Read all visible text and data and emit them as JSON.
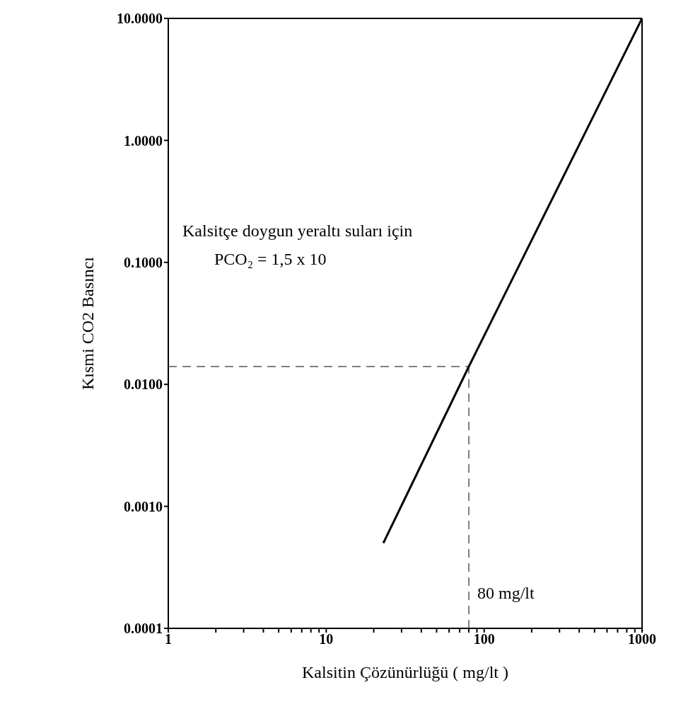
{
  "chart_data": {
    "type": "line",
    "xlabel": "Kalsitin Çözünürlüğü ( mg/lt )",
    "ylabel": "Kısmi CO2 Basıncı",
    "x": [
      23,
      80,
      1000
    ],
    "series": [
      {
        "color": "#000000",
        "values": [
          0.0005,
          0.014,
          10
        ]
      }
    ],
    "log": "xy",
    "grid": false,
    "legend": false,
    "marker": "none",
    "line_style": "solid",
    "xlim": [
      1,
      1000
    ],
    "xticks": [
      1,
      {
        "value": 2,
        "label": null
      },
      {
        "value": 3,
        "label": null
      },
      {
        "value": 4,
        "label": null
      },
      {
        "value": 5,
        "label": null
      },
      {
        "value": 6,
        "label": null
      },
      {
        "value": 7,
        "label": null
      },
      {
        "value": 8,
        "label": null
      },
      {
        "value": 9,
        "label": null
      },
      10,
      {
        "value": 20,
        "label": null
      },
      {
        "value": 30,
        "label": null
      },
      {
        "value": 40,
        "label": null
      },
      {
        "value": 50,
        "label": null
      },
      {
        "value": 60,
        "label": null
      },
      {
        "value": 70,
        "label": null
      },
      {
        "value": 80,
        "label": null
      },
      {
        "value": 90,
        "label": null
      },
      100,
      {
        "value": 200,
        "label": null
      },
      {
        "value": 300,
        "label": null
      },
      {
        "value": 400,
        "label": null
      },
      {
        "value": 500,
        "label": null
      },
      {
        "value": 600,
        "label": null
      },
      {
        "value": 700,
        "label": null
      },
      {
        "value": 800,
        "label": null
      },
      {
        "value": 900,
        "label": null
      },
      1000
    ],
    "ylim": [
      0.0001,
      10
    ],
    "yticks": [
      {
        "value": 0.0001,
        "label": "0.0001"
      },
      {
        "value": 0.001,
        "label": "0.0010"
      },
      {
        "value": 0.01,
        "label": "0.0100"
      },
      {
        "value": 0.1,
        "label": "0.1000"
      },
      {
        "value": 1,
        "label": "1.0000"
      },
      {
        "value": 10,
        "label": "10.0000"
      }
    ],
    "ref_lines": [
      {
        "axis": "y",
        "value": 0.014,
        "line_style": "dashed",
        "color": "#000000"
      },
      {
        "axis": "x",
        "value": 80,
        "label": "80 mg/lt",
        "line_style": "dashed",
        "color": "#000000"
      }
    ],
    "annotations": [
      "Kalsitçe doygun yeraltı suları için",
      "PCO₂ = 1,5 x 10"
    ]
  }
}
